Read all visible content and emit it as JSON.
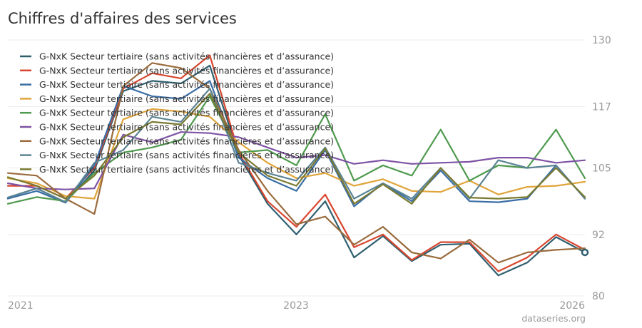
{
  "title": "Chiffres d'affaires des services",
  "source": "dataseries.org",
  "chart_data": {
    "type": "line",
    "x": [
      "2021-01",
      "2021-04",
      "2021-07",
      "2021-10",
      "2022-01",
      "2022-04",
      "2022-07",
      "2022-10",
      "2023-01",
      "2023-04",
      "2023-07",
      "2023-10",
      "2024-01",
      "2024-04",
      "2024-07",
      "2024-10",
      "2025-01",
      "2025-04",
      "2025-07",
      "2025-10",
      "2026-01"
    ],
    "ylim": [
      80,
      130
    ],
    "yticks": [
      80,
      92,
      105,
      117,
      130
    ],
    "xticks": [
      "2021",
      "2023",
      "2026"
    ],
    "grid": "horizontal",
    "legend_position": "top-left",
    "series": [
      {
        "name": "G-NxK Secteur tertiaire (sans activités financières et d’assurance)",
        "color": "#2f5f6f",
        "values": [
          99.2,
          101.0,
          98.3,
          104.5,
          120.0,
          122.0,
          121.5,
          125.0,
          107.5,
          98.0,
          92.0,
          98.5,
          87.5,
          91.7,
          86.8,
          90.0,
          90.2,
          84.0,
          86.5,
          91.5,
          88.5
        ]
      },
      {
        "name": "G-NxK Secteur tertiaire (sans activités financières et d’assurance)",
        "color": "#d9462f",
        "values": [
          101.5,
          101.5,
          99.0,
          105.0,
          120.5,
          123.5,
          122.5,
          127.0,
          108.0,
          98.5,
          93.5,
          99.8,
          89.5,
          92.0,
          87.0,
          90.5,
          90.5,
          84.8,
          87.5,
          92.0,
          89.0
        ]
      },
      {
        "name": "G-NxK Secteur tertiaire (sans activités financières et d’assurance)",
        "color": "#3a6ea5",
        "values": [
          99.0,
          100.5,
          98.2,
          105.5,
          121.0,
          119.0,
          118.5,
          122.0,
          107.0,
          103.0,
          100.5,
          108.5,
          97.5,
          102.0,
          98.5,
          104.5,
          98.5,
          98.3,
          99.0,
          105.5,
          99.0
        ]
      },
      {
        "name": "G-NxK Secteur tertiaire (sans activités financières et d’assurance)",
        "color": "#e0a43a",
        "values": [
          103.0,
          102.0,
          99.5,
          99.0,
          114.5,
          116.5,
          116.0,
          115.0,
          110.0,
          106.0,
          103.0,
          104.0,
          101.5,
          102.8,
          100.5,
          100.3,
          102.5,
          99.8,
          101.3,
          101.5,
          102.3
        ]
      },
      {
        "name": "G-NxK Secteur tertiaire (sans activités financières et d’assurance)",
        "color": "#4f9a4f",
        "values": [
          98.0,
          99.3,
          98.5,
          104.0,
          108.0,
          109.0,
          110.5,
          119.0,
          108.0,
          108.5,
          105.5,
          115.5,
          102.5,
          105.5,
          103.5,
          112.5,
          102.5,
          105.5,
          105.0,
          112.5,
          103.0
        ]
      },
      {
        "name": "G-NxK Secteur tertiaire (sans activités financières et d’assurance)",
        "color": "#7e52a5",
        "values": [
          102.0,
          101.0,
          100.8,
          101.0,
          111.5,
          110.0,
          112.0,
          111.8,
          111.0,
          109.0,
          107.0,
          107.5,
          105.8,
          106.5,
          105.8,
          106.0,
          106.2,
          107.0,
          107.0,
          106.0,
          106.5
        ]
      },
      {
        "name": "G-NxK Secteur tertiaire (sans activités financières et d’assurance)",
        "color": "#9a6b3c",
        "values": [
          104.0,
          103.5,
          99.0,
          96.0,
          121.0,
          125.5,
          124.5,
          120.5,
          108.5,
          100.5,
          94.0,
          95.5,
          90.0,
          93.5,
          88.5,
          87.3,
          91.0,
          86.5,
          88.5,
          89.0,
          89.3
        ]
      },
      {
        "name": "G-NxK Secteur tertiaire (sans activités financières et d’assurance)",
        "color": "#5b8494",
        "values": [
          99.2,
          101.0,
          98.3,
          106.0,
          108.5,
          115.0,
          114.0,
          120.5,
          106.0,
          104.0,
          102.5,
          109.0,
          99.0,
          102.0,
          99.0,
          105.0,
          99.0,
          106.5,
          105.0,
          105.5,
          99.0
        ]
      },
      {
        "name": "G-NxK Secteur tertiaire (sans activités financières et d’assurance)",
        "color": "#7a7a32",
        "values": [
          103.2,
          101.5,
          99.0,
          103.5,
          111.0,
          114.0,
          113.5,
          119.5,
          108.0,
          103.5,
          101.5,
          108.8,
          98.0,
          101.8,
          98.0,
          105.0,
          99.2,
          99.0,
          99.3,
          105.0,
          99.3
        ]
      }
    ]
  }
}
